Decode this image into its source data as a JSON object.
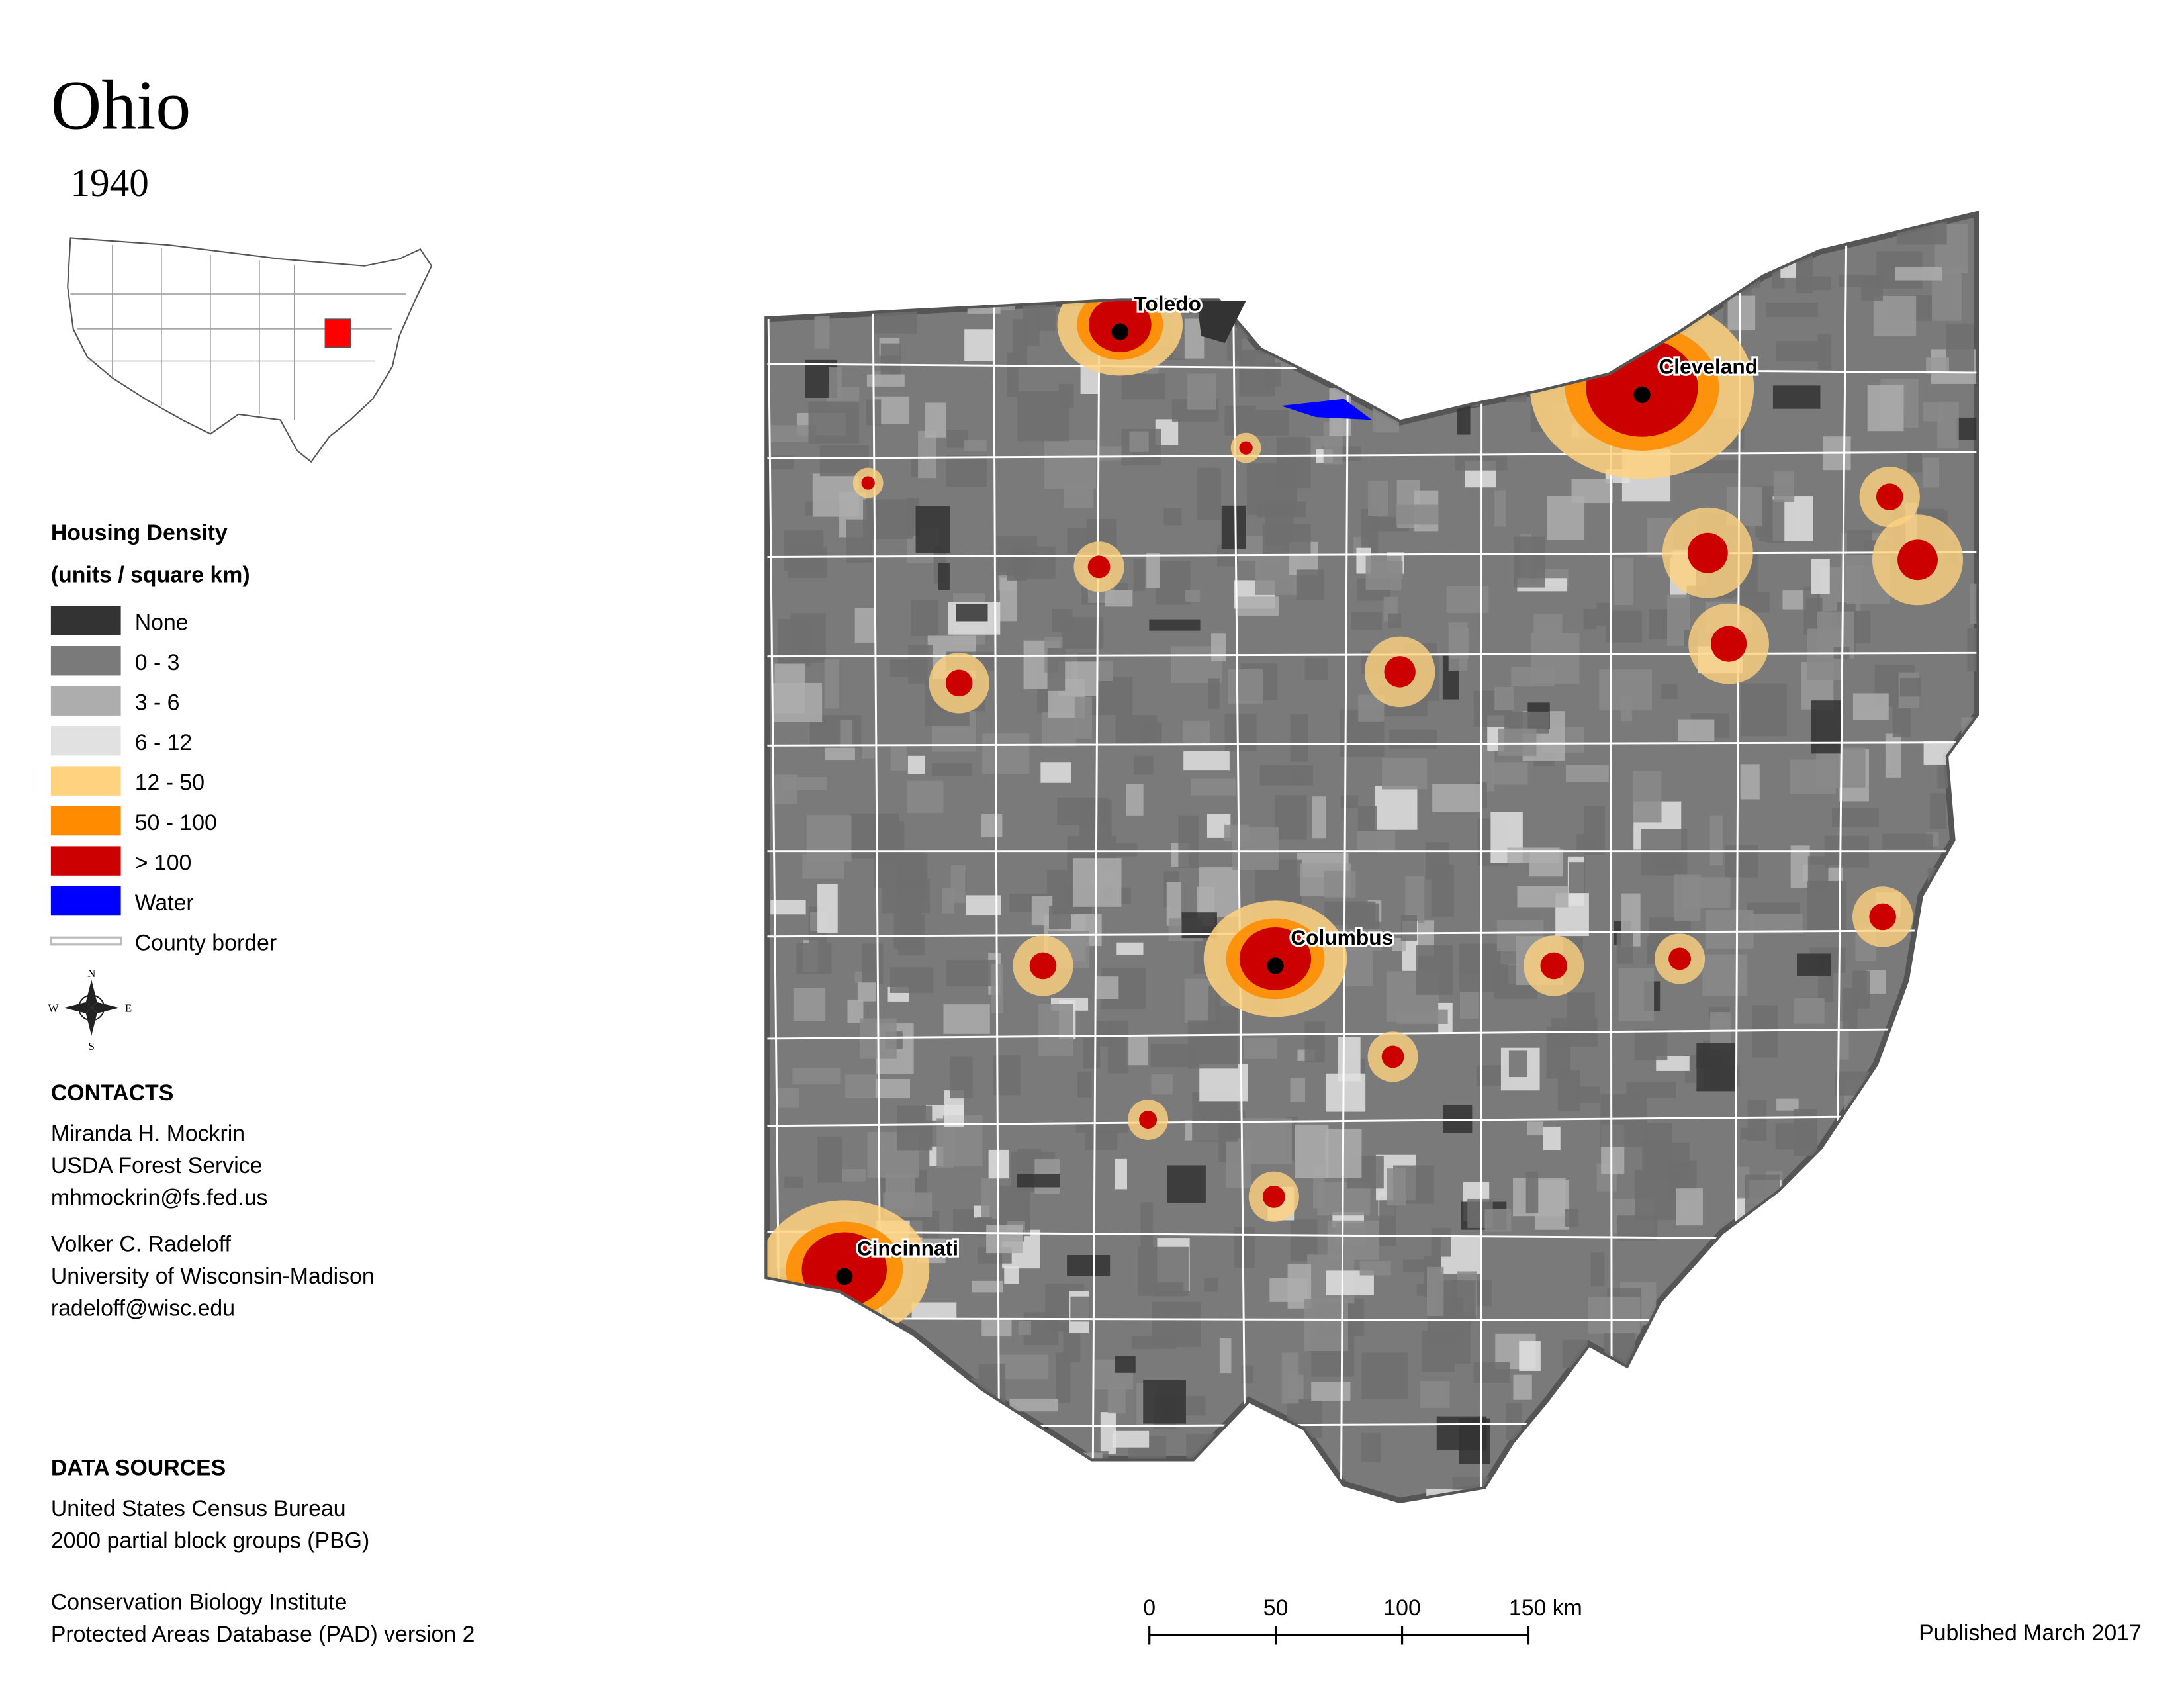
{
  "header": {
    "title": "Ohio",
    "year": "1940"
  },
  "legend": {
    "title_line1": "Housing Density",
    "title_line2": "(units / square km)",
    "items": [
      "None",
      "0 - 3",
      "3 - 6",
      "6 - 12",
      "12 - 50",
      "50 - 100",
      "> 100",
      "Water",
      "County border"
    ]
  },
  "compass": {
    "n": "N",
    "s": "S",
    "e": "E",
    "w": "W"
  },
  "contacts": {
    "heading": "CONTACTS",
    "people": [
      [
        "Miranda H. Mockrin",
        "USDA Forest Service",
        "mhmockrin@fs.fed.us"
      ],
      [
        "Volker C. Radeloff",
        "University of Wisconsin-Madison",
        "radeloff@wisc.edu"
      ]
    ]
  },
  "data_sources": {
    "heading": "DATA SOURCES",
    "sources": [
      [
        "United States Census Bureau",
        "2000 partial block groups (PBG)"
      ],
      [
        "Conservation Biology Institute",
        "Protected Areas Database (PAD) version 2"
      ]
    ]
  },
  "cities": [
    "Toledo",
    "Cleveland",
    "Columbus",
    "Cincinnati"
  ],
  "scale_bar": {
    "labels": [
      "0",
      "50",
      "100",
      "150 km"
    ]
  },
  "footer": {
    "published": "Published March 2017"
  }
}
